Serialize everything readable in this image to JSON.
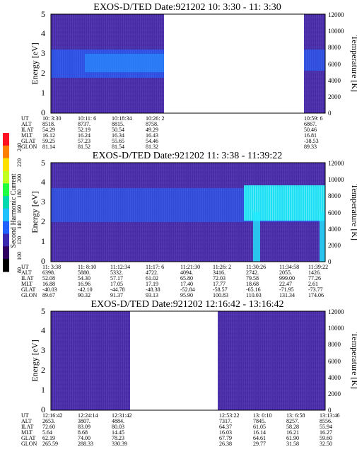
{
  "colors": {
    "background_spectrogram": "#4a2fa8",
    "blue_band": "#1f5fff",
    "cyan_band": "#22f0ff",
    "white_gap": "#ffffff"
  },
  "colorbar": {
    "label": "Second Harmonic Current",
    "ticks": [
      "240",
      "220",
      "200",
      "180",
      "160",
      "140",
      "120",
      "100",
      "80"
    ],
    "colors": [
      "#ff1020",
      "#ff8000",
      "#ffe000",
      "#c0ff20",
      "#20ff40",
      "#00d8b0",
      "#20c0ff",
      "#2060ff",
      "#3a28b0",
      "#300060",
      "#000000"
    ]
  },
  "chart_data": [
    {
      "type": "heatmap",
      "title": "EXOS-D/TED   Date:921202  10: 3:30 - 11: 3:30",
      "ylabel": "Energy [eV]",
      "ylabel_right": "Temperature [K]",
      "ylim": [
        0,
        5
      ],
      "yticks": [
        "5",
        "4",
        "3",
        "2",
        "1",
        "0"
      ],
      "ylim_right": [
        0,
        12000
      ],
      "yticks_right": [
        "12000",
        "10000",
        "8000",
        "6000",
        "4000",
        "2000",
        "0"
      ],
      "gaps": [
        [
          10.45,
          10.99
        ]
      ],
      "row_labels": [
        "UT",
        "ALT",
        "ILAT",
        "MLT",
        "GLAT",
        "GLON"
      ],
      "columns": [
        {
          "UT": "10: 3:30",
          "ALT": "8518.",
          "ILAT": "54.29",
          "MLT": "16.12",
          "GLAT": "59.25",
          "GLON": "81.14"
        },
        {
          "UT": "10:11: 6",
          "ALT": "8737.",
          "ILAT": "52.19",
          "MLT": "16.24",
          "GLAT": "57.23",
          "GLON": "81.52"
        },
        {
          "UT": "10:18:34",
          "ALT": "8815.",
          "ILAT": "50.54",
          "MLT": "16.34",
          "GLAT": "55.65",
          "GLON": "81.54"
        },
        {
          "UT": "10:26: 2",
          "ALT": "8758.",
          "ILAT": "49.29",
          "MLT": "16.43",
          "GLAT": "54.46",
          "GLON": "81.32"
        },
        {
          "UT": "10:59: 6",
          "ALT": "6867.",
          "ILAT": "50.46",
          "MLT": "16.81",
          "GLAT": "-38.53",
          "GLON": "89.33"
        }
      ]
    },
    {
      "type": "heatmap",
      "title": "EXOS-D/TED   Date:921202  11: 3:38 - 11:39:22",
      "ylabel": "Energy [eV]",
      "ylabel_right": "Temperature [K]",
      "ylim": [
        0,
        5
      ],
      "yticks": [
        "5",
        "4",
        "3",
        "2",
        "1",
        "0"
      ],
      "ylim_right": [
        0,
        12000
      ],
      "yticks_right": [
        "12000",
        "10000",
        "8000",
        "6000",
        "4000",
        "2000",
        "0"
      ],
      "row_labels": [
        "UT",
        "ALT",
        "ILAT",
        "MLT",
        "GLAT",
        "GLON"
      ],
      "columns": [
        {
          "UT": "11: 3:38",
          "ALT": "6398.",
          "ILAT": "52.08",
          "MLT": "16.88",
          "GLAT": "-40.03",
          "GLON": "89.67"
        },
        {
          "UT": "11: 8:10",
          "ALT": "5880.",
          "ILAT": "54.30",
          "MLT": "16.96",
          "GLAT": "-42.10",
          "GLON": "90.32"
        },
        {
          "UT": "11:12:34",
          "ALT": "5332.",
          "ILAT": "57.17",
          "MLT": "17.05",
          "GLAT": "-44.78",
          "GLON": "91.37"
        },
        {
          "UT": "11:17: 6",
          "ALT": "4722.",
          "ILAT": "61.02",
          "MLT": "17.19",
          "GLAT": "-48.38",
          "GLON": "93.13"
        },
        {
          "UT": "11:21:30",
          "ALT": "4094.",
          "ILAT": "65.80",
          "MLT": "17.40",
          "GLAT": "-52.84",
          "GLON": "95.90"
        },
        {
          "UT": "11:26: 2",
          "ALT": "3416.",
          "ILAT": "72.03",
          "MLT": "17.77",
          "GLAT": "-58.57",
          "GLON": "100.83"
        },
        {
          "UT": "11:30:26",
          "ALT": "2742.",
          "ILAT": "79.58",
          "MLT": "18.68",
          "GLAT": "-65.16",
          "GLON": "110.03"
        },
        {
          "UT": "11:34:58",
          "ALT": "2055.",
          "ILAT": "999.00",
          "MLT": "22.47",
          "GLAT": "-71.95",
          "GLON": "131.34"
        },
        {
          "UT": "11:39:22",
          "ALT": "1426.",
          "ILAT": "77.26",
          "MLT": "2.61",
          "GLAT": "-73.77",
          "GLON": "174.06"
        }
      ]
    },
    {
      "type": "heatmap",
      "title": "EXOS-D/TED   Date:921202  12:16:42 - 13:16:42",
      "ylabel": "Energy [eV]",
      "ylabel_right": "Temperature [K]",
      "ylim": [
        0,
        5
      ],
      "yticks": [
        "5",
        "4",
        "3",
        "2",
        "1",
        "0"
      ],
      "ylim_right": [
        0,
        12000
      ],
      "yticks_right": [
        "12000",
        "10000",
        "8000",
        "6000",
        "4000",
        "2000",
        "0"
      ],
      "gaps": [
        [
          12.56,
          12.88
        ]
      ],
      "row_labels": [
        "UT",
        "ALT",
        "ILAT",
        "MLT",
        "GLAT",
        "GLON"
      ],
      "columns": [
        {
          "UT": "12:16:42",
          "ALT": "2653.",
          "ILAT": "72.60",
          "MLT": "5.64",
          "GLAT": "62.19",
          "GLON": "265.59"
        },
        {
          "UT": "12:24:14",
          "ALT": "3807.",
          "ILAT": "83.09",
          "MLT": "8.68",
          "GLAT": "74.00",
          "GLON": "288.33"
        },
        {
          "UT": "12:31:42",
          "ALT": "4884.",
          "ILAT": "80.03",
          "MLT": "14.45",
          "GLAT": "78.23",
          "GLON": "330.39"
        },
        {
          "UT": "12:53:22",
          "ALT": "7317.",
          "ILAT": "64.37",
          "MLT": "16.03",
          "GLAT": "67.79",
          "GLON": "26.38"
        },
        {
          "UT": "13: 0:10",
          "ALT": "7845.",
          "ILAT": "61.05",
          "MLT": "16.14",
          "GLAT": "64.61",
          "GLON": "29.77"
        },
        {
          "UT": "13: 6:58",
          "ALT": "8257.",
          "ILAT": "58.28",
          "MLT": "16.21",
          "GLAT": "61.90",
          "GLON": "31.58"
        },
        {
          "UT": "13:13:46",
          "ALT": "8556.",
          "ILAT": "55.94",
          "MLT": "16.27",
          "GLAT": "59.60",
          "GLON": "32.50"
        }
      ]
    }
  ]
}
